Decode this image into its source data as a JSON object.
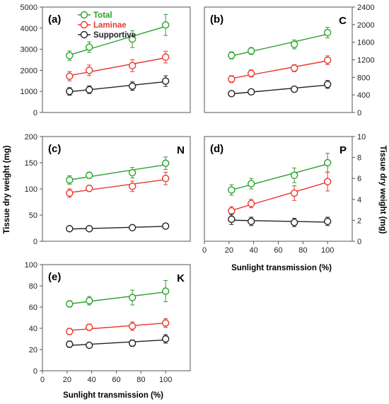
{
  "figure": {
    "y_axis_label_left": "Tissue dry weight (mg)",
    "y_axis_label_right": "Tissue dry weight (mg)",
    "x_axis_label": "Sunlight transmission (%)",
    "legend": [
      "Total",
      "Laminae",
      "Supportive"
    ]
  },
  "colors": {
    "Total": "#2ca02c",
    "Laminae": "#e8382f",
    "Supportive": "#222222"
  },
  "chart_data": [
    {
      "type": "scatter",
      "panel": "(a)",
      "element": "",
      "x": [
        22,
        38,
        73,
        100
      ],
      "xlim": [
        0,
        120
      ],
      "ylim": [
        0,
        5000
      ],
      "yticks": [
        0,
        1000,
        2000,
        3000,
        4000,
        5000
      ],
      "y_axis_side": "left",
      "series": [
        {
          "name": "Total",
          "values": [
            2700,
            3100,
            3480,
            4150
          ],
          "errors": [
            220,
            250,
            400,
            500
          ]
        },
        {
          "name": "Laminae",
          "values": [
            1720,
            2000,
            2220,
            2630
          ],
          "errors": [
            220,
            250,
            280,
            280
          ]
        },
        {
          "name": "Supportive",
          "values": [
            1000,
            1080,
            1250,
            1490
          ],
          "errors": [
            180,
            180,
            200,
            250
          ]
        }
      ]
    },
    {
      "type": "scatter",
      "panel": "(b)",
      "element": "C",
      "x": [
        22,
        38,
        73,
        100
      ],
      "xlim": [
        0,
        120
      ],
      "ylim": [
        0,
        2400
      ],
      "yticks": [
        0,
        400,
        800,
        1200,
        1600,
        2000,
        2400
      ],
      "y_axis_side": "right",
      "series": [
        {
          "name": "Total",
          "values": [
            1300,
            1400,
            1550,
            1820
          ],
          "errors": [
            80,
            80,
            100,
            120
          ]
        },
        {
          "name": "Laminae",
          "values": [
            760,
            890,
            1010,
            1190
          ],
          "errors": [
            80,
            80,
            80,
            100
          ]
        },
        {
          "name": "Supportive",
          "values": [
            430,
            470,
            530,
            640
          ],
          "errors": [
            60,
            60,
            60,
            90
          ]
        }
      ]
    },
    {
      "type": "scatter",
      "panel": "(c)",
      "element": "N",
      "x": [
        22,
        38,
        73,
        100
      ],
      "xlim": [
        0,
        120
      ],
      "ylim": [
        0,
        200
      ],
      "yticks": [
        0,
        50,
        100,
        150,
        200
      ],
      "y_axis_side": "left",
      "series": [
        {
          "name": "Total",
          "values": [
            117,
            126,
            131,
            149
          ],
          "errors": [
            8,
            6,
            10,
            12
          ]
        },
        {
          "name": "Laminae",
          "values": [
            92,
            101,
            105,
            120
          ],
          "errors": [
            8,
            6,
            10,
            12
          ]
        },
        {
          "name": "Supportive",
          "values": [
            24,
            24,
            26,
            29
          ],
          "errors": [
            4,
            4,
            4,
            5
          ]
        }
      ]
    },
    {
      "type": "scatter",
      "panel": "(d)",
      "element": "P",
      "x": [
        22,
        38,
        73,
        100
      ],
      "xlim": [
        0,
        120
      ],
      "ylim": [
        0,
        10
      ],
      "yticks": [
        0,
        2,
        4,
        6,
        8,
        10
      ],
      "y_axis_side": "right",
      "series": [
        {
          "name": "Total",
          "values": [
            4.9,
            5.5,
            6.3,
            7.5
          ],
          "errors": [
            0.5,
            0.5,
            0.7,
            0.9
          ]
        },
        {
          "name": "Laminae",
          "values": [
            2.9,
            3.6,
            4.6,
            5.7
          ],
          "errors": [
            0.4,
            0.4,
            0.7,
            0.9
          ]
        },
        {
          "name": "Supportive",
          "values": [
            2.1,
            1.9,
            1.8,
            1.9
          ],
          "errors": [
            0.5,
            0.4,
            0.4,
            0.4
          ]
        }
      ]
    },
    {
      "type": "scatter",
      "panel": "(e)",
      "element": "K",
      "x": [
        22,
        38,
        73,
        100
      ],
      "xlim": [
        0,
        120
      ],
      "ylim": [
        0,
        100
      ],
      "yticks": [
        0,
        20,
        40,
        60,
        80,
        100
      ],
      "y_axis_side": "left",
      "series": [
        {
          "name": "Total",
          "values": [
            63,
            66,
            69,
            75
          ],
          "errors": [
            3,
            4,
            7,
            10
          ]
        },
        {
          "name": "Laminae",
          "values": [
            37,
            41,
            42,
            45
          ],
          "errors": [
            3,
            3,
            4,
            4
          ]
        },
        {
          "name": "Supportive",
          "values": [
            25,
            24,
            26,
            30
          ],
          "errors": [
            3,
            2,
            3,
            4
          ]
        }
      ]
    }
  ]
}
